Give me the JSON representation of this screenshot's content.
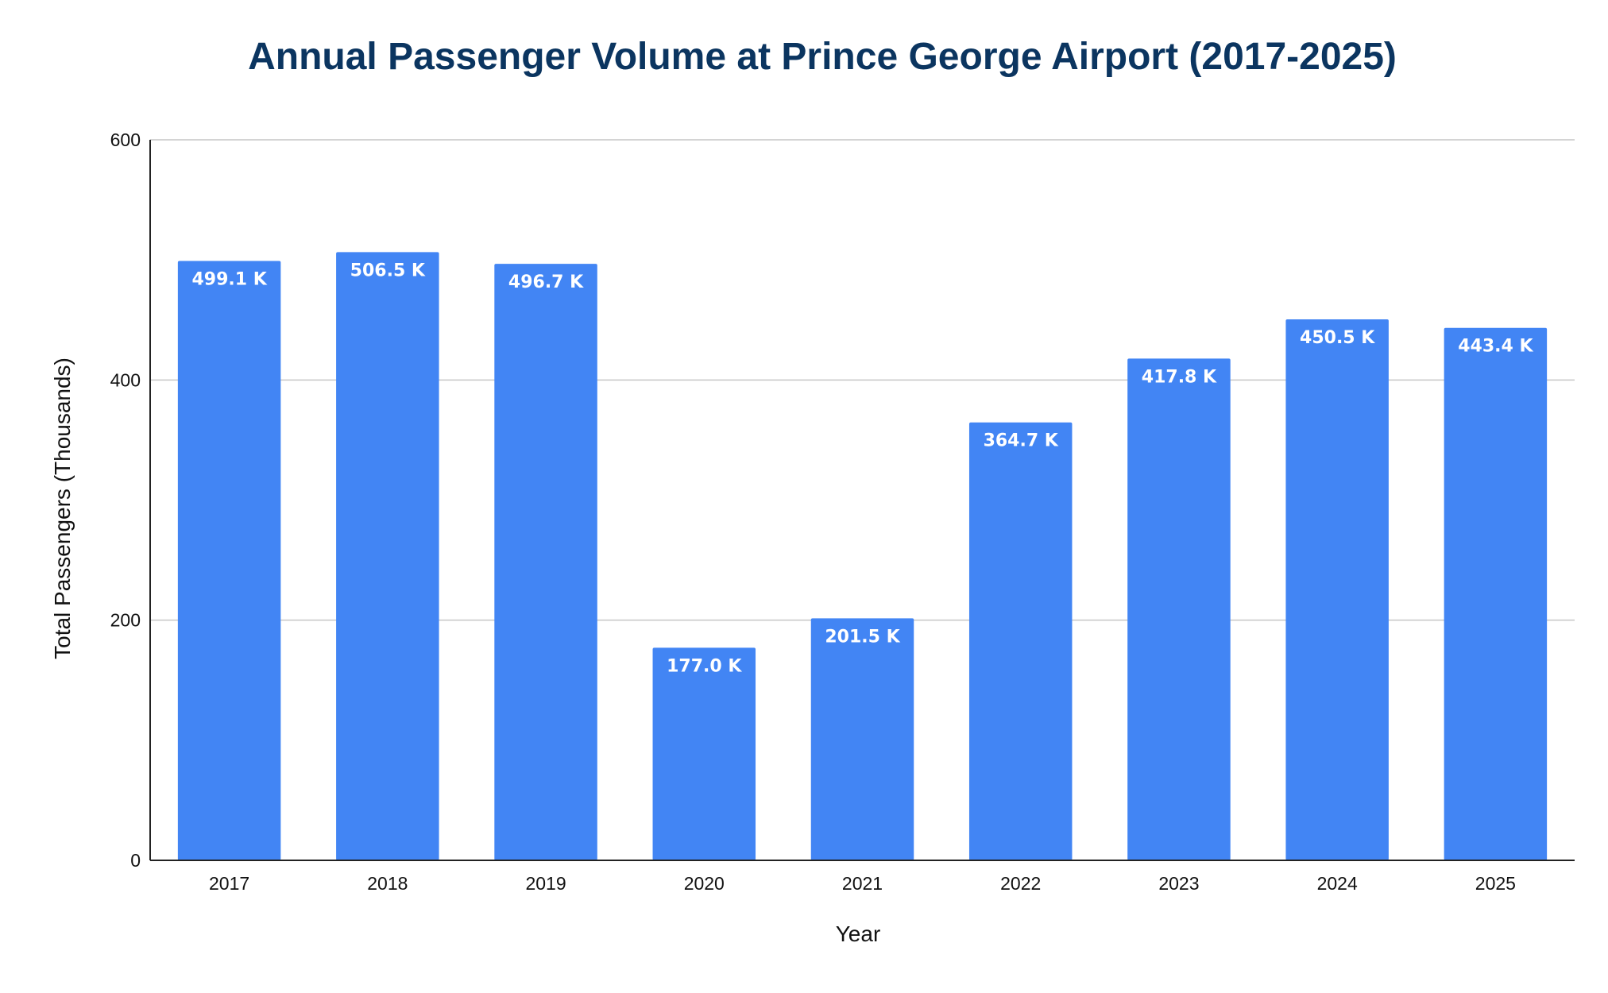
{
  "chart_data": {
    "type": "bar",
    "title": "Annual Passenger Volume at Prince George Airport (2017-2025)",
    "xlabel": "Year",
    "ylabel": "Total Passengers (Thousands)",
    "categories": [
      "2017",
      "2018",
      "2019",
      "2020",
      "2021",
      "2022",
      "2023",
      "2024",
      "2025"
    ],
    "values": [
      499.1,
      506.5,
      496.7,
      177.0,
      201.5,
      364.7,
      417.8,
      450.5,
      443.4
    ],
    "data_labels": [
      "499.1 K",
      "506.5 K",
      "496.7 K",
      "177.0 K",
      "201.5 K",
      "364.7 K",
      "417.8 K",
      "450.5 K",
      "443.4 K"
    ],
    "ylim": [
      0,
      600
    ],
    "yticks": [
      0,
      200,
      400,
      600
    ],
    "ytick_labels": [
      "0",
      "200",
      "400",
      "600"
    ],
    "grid": true,
    "legend": "none",
    "colors": {
      "bar": "#4285f4",
      "title": "#0b3560",
      "data_label": "#ffffff"
    }
  }
}
